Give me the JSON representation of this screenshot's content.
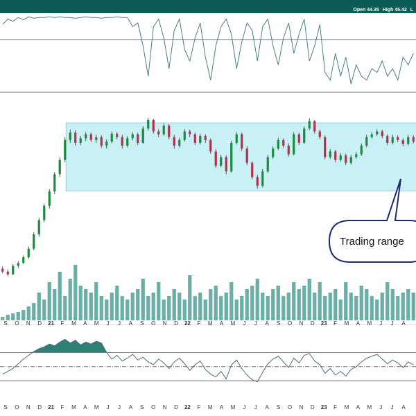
{
  "header": {
    "open_label": "Open",
    "open": 44.35,
    "high_label": "High",
    "high": 45.42,
    "low_label": "L"
  },
  "chart_data": [
    {
      "type": "candlestick",
      "ylim": [
        10,
        50
      ],
      "up_color": "#1c8a3c",
      "down_color": "#b3304c",
      "ohlc": [
        [
          20.0,
          20.4,
          19.2,
          19.5
        ],
        [
          19.5,
          19.9,
          18.7,
          19.0
        ],
        [
          19.0,
          20.8,
          18.9,
          20.5
        ],
        [
          20.5,
          21.4,
          20.1,
          21.0
        ],
        [
          21.0,
          22.3,
          20.8,
          22.0
        ],
        [
          22.0,
          23.9,
          21.7,
          23.5
        ],
        [
          23.5,
          26.4,
          23.2,
          26.0
        ],
        [
          26.0,
          28.9,
          25.6,
          28.5
        ],
        [
          28.5,
          31.4,
          28.1,
          31.0
        ],
        [
          31.0,
          33.9,
          30.5,
          33.5
        ],
        [
          33.5,
          36.9,
          33.0,
          36.5
        ],
        [
          36.5,
          39.5,
          36.0,
          39.0
        ],
        [
          39.0,
          43.0,
          38.6,
          42.5
        ],
        [
          42.5,
          44.3,
          42.0,
          43.8
        ],
        [
          43.8,
          44.2,
          41.5,
          42.0
        ],
        [
          42.0,
          43.2,
          41.6,
          42.8
        ],
        [
          42.8,
          43.9,
          42.3,
          43.5
        ],
        [
          43.5,
          43.8,
          42.1,
          42.5
        ],
        [
          42.5,
          43.4,
          42.0,
          43.0
        ],
        [
          43.0,
          43.3,
          41.1,
          41.5
        ],
        [
          41.5,
          42.6,
          41.0,
          42.2
        ],
        [
          42.2,
          44.0,
          41.9,
          43.6
        ],
        [
          43.6,
          43.9,
          42.6,
          43.0
        ],
        [
          43.0,
          43.4,
          41.0,
          41.5
        ],
        [
          41.5,
          43.2,
          41.2,
          42.8
        ],
        [
          42.8,
          43.9,
          42.4,
          43.5
        ],
        [
          43.5,
          43.8,
          41.6,
          42.0
        ],
        [
          42.0,
          44.9,
          41.8,
          44.5
        ],
        [
          44.5,
          46.4,
          44.1,
          46.0
        ],
        [
          46.0,
          46.2,
          43.6,
          44.0
        ],
        [
          44.0,
          44.4,
          43.0,
          43.5
        ],
        [
          43.5,
          45.4,
          43.2,
          45.0
        ],
        [
          45.0,
          45.3,
          42.6,
          43.0
        ],
        [
          43.0,
          43.4,
          41.0,
          41.5
        ],
        [
          41.5,
          42.9,
          41.2,
          42.5
        ],
        [
          42.5,
          44.4,
          42.2,
          44.0
        ],
        [
          44.0,
          44.3,
          43.0,
          43.5
        ],
        [
          43.5,
          43.8,
          41.6,
          42.0
        ],
        [
          42.0,
          43.6,
          41.7,
          43.2
        ],
        [
          43.2,
          43.5,
          42.0,
          42.5
        ],
        [
          42.5,
          42.8,
          40.1,
          40.5
        ],
        [
          40.5,
          40.9,
          37.6,
          38.0
        ],
        [
          38.0,
          39.9,
          37.7,
          39.5
        ],
        [
          39.5,
          39.8,
          36.5,
          37.0
        ],
        [
          37.0,
          42.4,
          36.8,
          42.0
        ],
        [
          42.0,
          43.9,
          41.7,
          43.5
        ],
        [
          43.5,
          43.8,
          40.6,
          41.0
        ],
        [
          41.0,
          41.4,
          38.1,
          38.5
        ],
        [
          38.5,
          38.8,
          35.6,
          36.0
        ],
        [
          36.0,
          36.4,
          34.0,
          34.5
        ],
        [
          34.5,
          37.4,
          34.2,
          37.0
        ],
        [
          37.0,
          39.9,
          36.7,
          39.5
        ],
        [
          39.5,
          41.4,
          39.2,
          41.0
        ],
        [
          41.0,
          42.9,
          40.7,
          42.5
        ],
        [
          42.5,
          42.8,
          41.1,
          41.5
        ],
        [
          41.5,
          41.9,
          39.6,
          40.0
        ],
        [
          40.0,
          43.9,
          39.8,
          43.5
        ],
        [
          43.5,
          43.8,
          41.6,
          42.0
        ],
        [
          42.0,
          44.9,
          41.8,
          44.5
        ],
        [
          44.5,
          46.3,
          44.2,
          45.8
        ],
        [
          45.8,
          46.0,
          43.6,
          44.0
        ],
        [
          44.0,
          44.3,
          42.6,
          43.0
        ],
        [
          43.0,
          43.3,
          39.1,
          39.5
        ],
        [
          39.5,
          40.9,
          39.2,
          40.5
        ],
        [
          40.5,
          40.8,
          38.6,
          39.0
        ],
        [
          39.0,
          40.2,
          38.7,
          39.8
        ],
        [
          39.8,
          40.1,
          38.1,
          38.5
        ],
        [
          38.5,
          39.9,
          38.2,
          39.5
        ],
        [
          39.5,
          40.4,
          39.2,
          40.0
        ],
        [
          40.0,
          41.9,
          39.7,
          41.5
        ],
        [
          41.5,
          43.4,
          41.2,
          43.0
        ],
        [
          43.0,
          43.9,
          42.7,
          43.5
        ],
        [
          43.5,
          44.4,
          43.2,
          44.0
        ],
        [
          44.0,
          44.3,
          42.8,
          43.2
        ],
        [
          43.2,
          43.5,
          41.6,
          42.0
        ],
        [
          42.0,
          43.4,
          41.7,
          43.0
        ],
        [
          43.0,
          43.3,
          42.1,
          42.5
        ],
        [
          42.5,
          42.8,
          41.4,
          41.8
        ],
        [
          41.8,
          43.4,
          41.5,
          43.0
        ],
        [
          43.0,
          43.3,
          41.9,
          42.2
        ]
      ],
      "volume": [
        5,
        8,
        10,
        12,
        15,
        20,
        25,
        40,
        30,
        55,
        45,
        70,
        35,
        60,
        80,
        50,
        45,
        40,
        55,
        35,
        30,
        40,
        50,
        35,
        30,
        40,
        45,
        60,
        35,
        40,
        55,
        30,
        35,
        45,
        40,
        30,
        65,
        35,
        40,
        30,
        45,
        50,
        35,
        40,
        55,
        30,
        35,
        45,
        50,
        60,
        40,
        35,
        45,
        50,
        35,
        40,
        55,
        45,
        50,
        60,
        40,
        55,
        35,
        40,
        45,
        30,
        55,
        40,
        35,
        50,
        45,
        35,
        30,
        40,
        55,
        45,
        35,
        40,
        45,
        40
      ],
      "volume_ylim": [
        0,
        100
      ],
      "volume_color": "#6aaea8",
      "range": {
        "low": 33.6,
        "high": 45.5,
        "color": "#c9f1f5"
      },
      "annotation": "Trading range",
      "categories": [
        "S",
        "O",
        "N",
        "D",
        "21",
        "F",
        "M",
        "A",
        "M",
        "J",
        "J",
        "A",
        "S",
        "O",
        "N",
        "D",
        "22",
        "F",
        "M",
        "A",
        "M",
        "J",
        "J",
        "A",
        "S",
        "O",
        "N",
        "D",
        "23",
        "F",
        "M",
        "A",
        "M",
        "J",
        "J",
        "A"
      ]
    },
    {
      "type": "line",
      "ylim": [
        0,
        100
      ],
      "color": "#4b7d88",
      "levels": [
        68
      ],
      "level_styles": [
        "solid"
      ],
      "values": [
        88,
        95,
        92,
        97,
        94,
        98,
        96,
        97,
        97,
        98,
        97,
        98,
        97,
        97,
        96,
        97,
        98,
        97,
        97,
        96,
        97,
        97,
        98,
        97,
        97,
        85,
        90,
        60,
        20,
        85,
        95,
        70,
        30,
        80,
        95,
        55,
        40,
        70,
        90,
        45,
        15,
        60,
        85,
        95,
        75,
        30,
        65,
        90,
        80,
        40,
        85,
        95,
        60,
        35,
        70,
        90,
        50,
        75,
        95,
        40,
        60,
        88,
        25,
        15,
        50,
        20,
        45,
        10,
        35,
        20,
        15,
        30,
        25,
        40,
        20,
        30,
        15,
        45,
        35,
        50
      ]
    },
    {
      "type": "line",
      "ylim": [
        -2,
        3
      ],
      "color": "#4b6b7b",
      "fill_color": "#2f7f72",
      "levels": [
        -1.5,
        0,
        1.5
      ],
      "level_styles": [
        "solid",
        "dashdot",
        "solid"
      ],
      "values": [
        -0.8,
        -0.5,
        -0.2,
        0.3,
        0.8,
        1.2,
        1.6,
        1.9,
        2.1,
        2.4,
        2.2,
        2.6,
        2.9,
        2.5,
        2.8,
        2.3,
        2.6,
        2.4,
        2.7,
        2.5,
        1.5,
        0.8,
        1.2,
        0.6,
        0.9,
        1.3,
        0.7,
        1.0,
        0.5,
        0.2,
        0.8,
        0.4,
        -0.2,
        0.5,
        0.9,
        0.3,
        -0.4,
        0.2,
        0.6,
        -0.3,
        -0.8,
        -1.1,
        -0.5,
        -1.3,
        0.2,
        0.7,
        -0.2,
        -0.9,
        -1.4,
        -1.6,
        -0.6,
        0.3,
        0.8,
        1.1,
        0.5,
        -0.1,
        0.9,
        0.4,
        1.2,
        1.4,
        0.6,
        0.2,
        -0.7,
        -0.2,
        -0.9,
        -0.5,
        -1.0,
        -0.3,
        0.0,
        0.5,
        0.9,
        1.1,
        1.3,
        0.8,
        0.3,
        0.7,
        0.4,
        -0.1,
        0.5,
        0.2
      ]
    }
  ]
}
